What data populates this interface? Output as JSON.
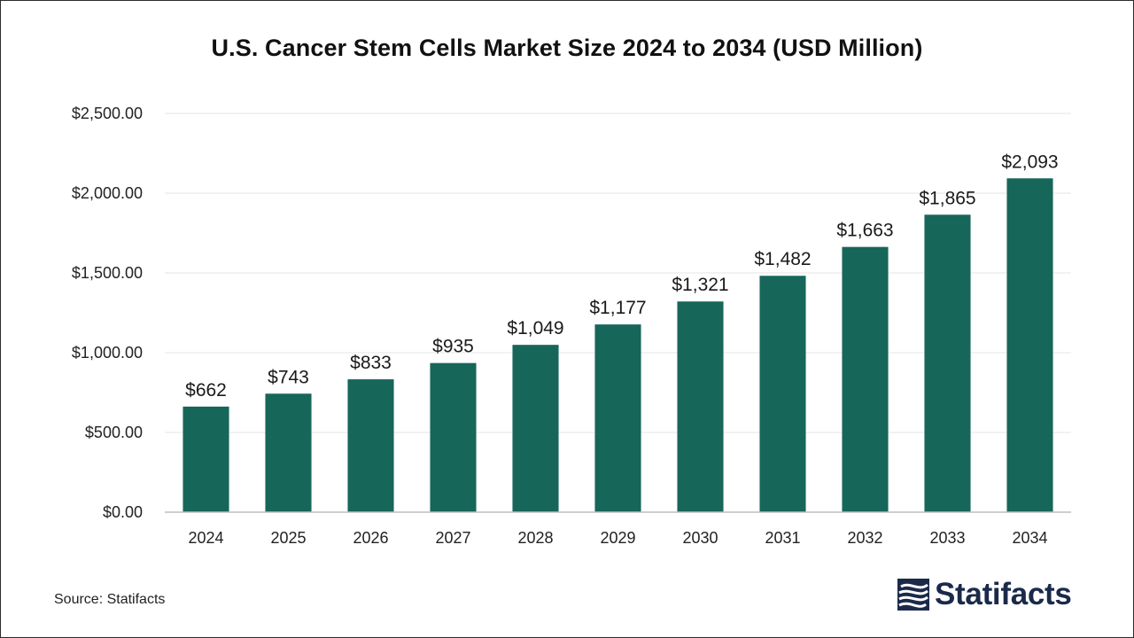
{
  "title": "U.S. Cancer Stem Cells Market Size 2024 to 2034 (USD Million)",
  "source": "Source: Statifacts",
  "brand": {
    "name": "Statifacts",
    "logo_icon": "statifacts-logo-icon"
  },
  "colors": {
    "bar": "#17665a",
    "gridline": "#e6e6e6",
    "axis": "#bfbfbf",
    "brand": "#1b2a4a"
  },
  "chart_data": {
    "type": "bar",
    "title": "U.S. Cancer Stem Cells Market Size 2024 to 2034 (USD Million)",
    "xlabel": "",
    "ylabel": "",
    "categories": [
      "2024",
      "2025",
      "2026",
      "2027",
      "2028",
      "2029",
      "2030",
      "2031",
      "2032",
      "2033",
      "2034"
    ],
    "values": [
      662,
      743,
      833,
      935,
      1049,
      1177,
      1321,
      1482,
      1663,
      1865,
      2093
    ],
    "value_labels": [
      "$662",
      "$743",
      "$833",
      "$935",
      "$1,049",
      "$1,177",
      "$1,321",
      "$1,482",
      "$1,663",
      "$1,865",
      "$2,093"
    ],
    "ylim": [
      0,
      2500
    ],
    "y_ticks": [
      0,
      500,
      1000,
      1500,
      2000,
      2500
    ],
    "y_tick_labels": [
      "$0.00",
      "$500.00",
      "$1,000.00",
      "$1,500.00",
      "$2,000.00",
      "$2,500.00"
    ],
    "grid": true,
    "legend": "none"
  }
}
